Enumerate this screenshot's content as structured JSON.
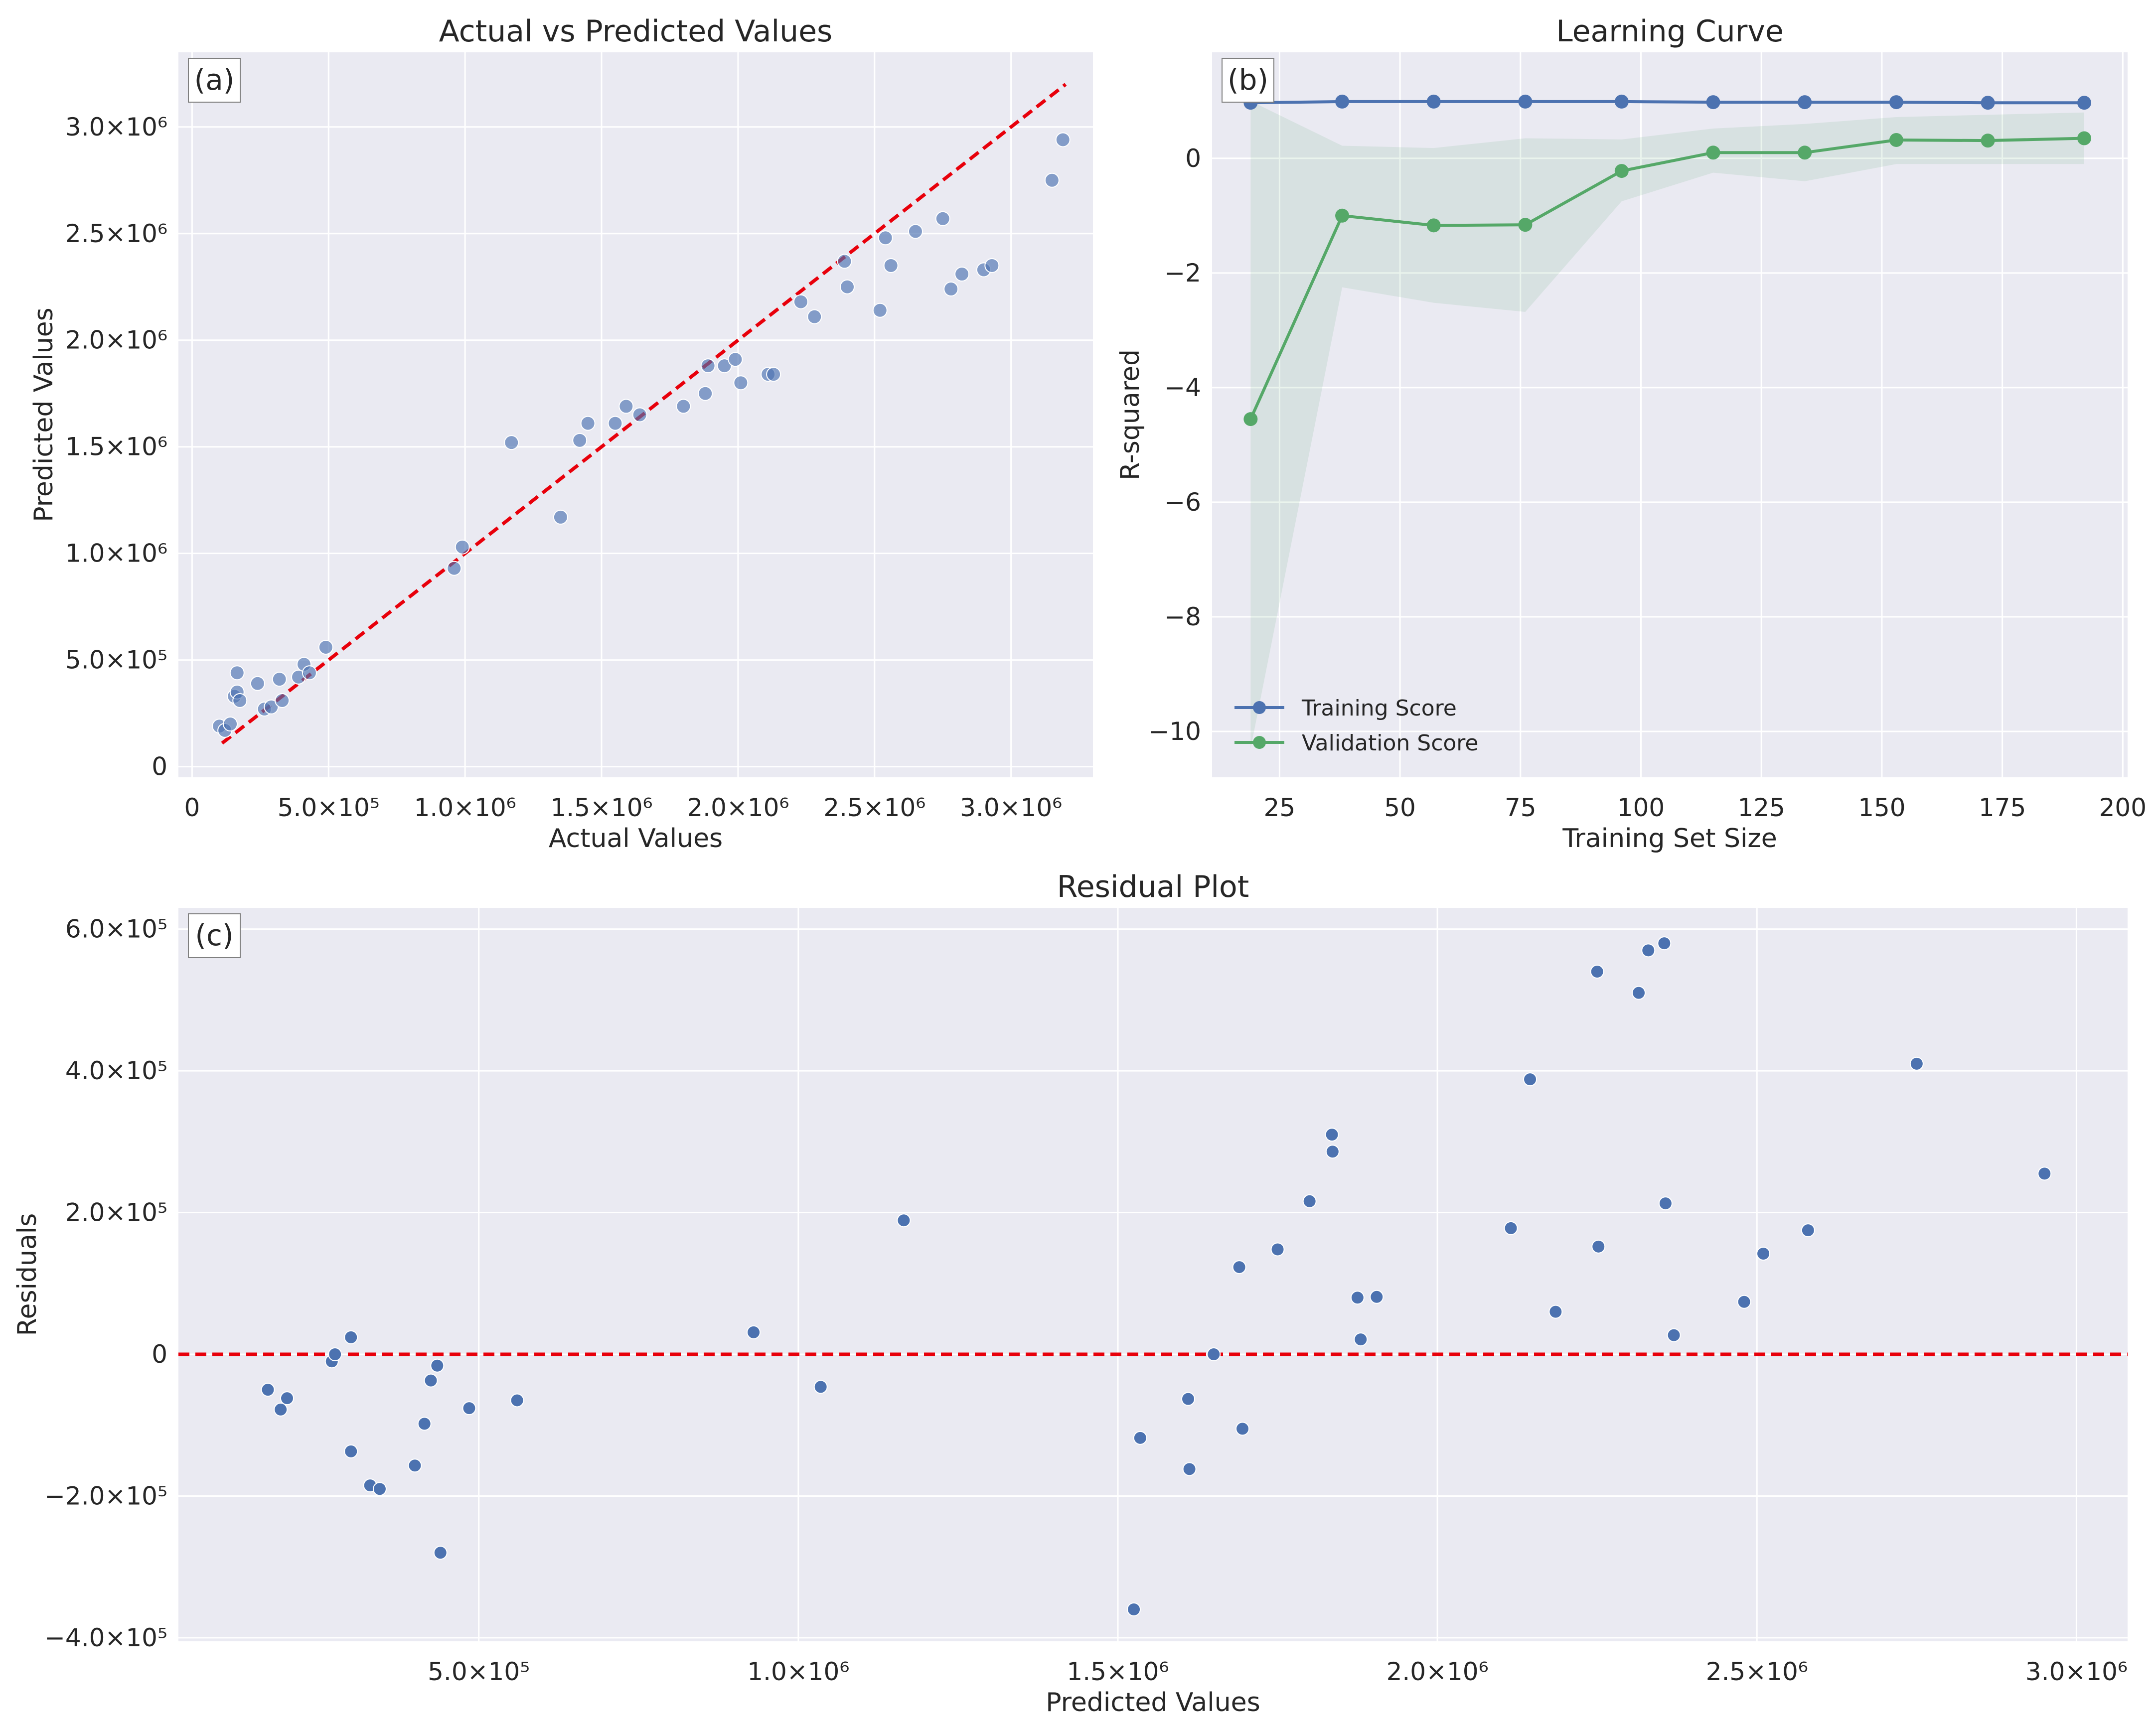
{
  "chart_data": [
    {
      "type": "scatter",
      "panel_label": "(a)",
      "title": "Actual vs Predicted Values",
      "xlabel": "Actual Values",
      "ylabel": "Predicted Values",
      "xlim": [
        -50000,
        3300000
      ],
      "ylim": [
        -50000,
        3350000
      ],
      "xticks": [
        0,
        500000,
        1000000,
        1500000,
        2000000,
        2500000,
        3000000
      ],
      "xtick_labels": [
        "0",
        "5.0×10⁵",
        "1.0×10⁶",
        "1.5×10⁶",
        "2.0×10⁶",
        "2.5×10⁶",
        "3.0×10⁶"
      ],
      "yticks": [
        0,
        500000,
        1000000,
        1500000,
        2000000,
        2500000,
        3000000
      ],
      "ytick_labels": [
        "0",
        "5.0×10⁵",
        "1.0×10⁶",
        "1.5×10⁶",
        "2.0×10⁶",
        "2.5×10⁶",
        "3.0×10⁶"
      ],
      "grid": true,
      "reference_line": {
        "x": [
          110000,
          3200000
        ],
        "y": [
          110000,
          3200000
        ],
        "color": "#e8000b",
        "style": "dashed"
      },
      "point_color": "#4c72b0",
      "points": [
        {
          "x": 100000,
          "y": 190000
        },
        {
          "x": 120000,
          "y": 170000
        },
        {
          "x": 140000,
          "y": 200000
        },
        {
          "x": 155000,
          "y": 330000
        },
        {
          "x": 165000,
          "y": 350000
        },
        {
          "x": 165000,
          "y": 440000
        },
        {
          "x": 175000,
          "y": 310000
        },
        {
          "x": 240000,
          "y": 390000
        },
        {
          "x": 265000,
          "y": 270000
        },
        {
          "x": 290000,
          "y": 280000
        },
        {
          "x": 320000,
          "y": 410000
        },
        {
          "x": 330000,
          "y": 310000
        },
        {
          "x": 390000,
          "y": 420000
        },
        {
          "x": 410000,
          "y": 480000
        },
        {
          "x": 430000,
          "y": 440000
        },
        {
          "x": 490000,
          "y": 560000
        },
        {
          "x": 960000,
          "y": 930000
        },
        {
          "x": 990000,
          "y": 1030000
        },
        {
          "x": 1170000,
          "y": 1520000
        },
        {
          "x": 1350000,
          "y": 1170000
        },
        {
          "x": 1420000,
          "y": 1530000
        },
        {
          "x": 1450000,
          "y": 1610000
        },
        {
          "x": 1550000,
          "y": 1610000
        },
        {
          "x": 1590000,
          "y": 1690000
        },
        {
          "x": 1640000,
          "y": 1650000
        },
        {
          "x": 1800000,
          "y": 1690000
        },
        {
          "x": 1880000,
          "y": 1750000
        },
        {
          "x": 1890000,
          "y": 1880000
        },
        {
          "x": 1950000,
          "y": 1880000
        },
        {
          "x": 1990000,
          "y": 1910000
        },
        {
          "x": 2010000,
          "y": 1800000
        },
        {
          "x": 2110000,
          "y": 1840000
        },
        {
          "x": 2130000,
          "y": 1840000
        },
        {
          "x": 2230000,
          "y": 2180000
        },
        {
          "x": 2280000,
          "y": 2110000
        },
        {
          "x": 2390000,
          "y": 2370000
        },
        {
          "x": 2400000,
          "y": 2250000
        },
        {
          "x": 2520000,
          "y": 2140000
        },
        {
          "x": 2540000,
          "y": 2480000
        },
        {
          "x": 2560000,
          "y": 2350000
        },
        {
          "x": 2650000,
          "y": 2510000
        },
        {
          "x": 2750000,
          "y": 2570000
        },
        {
          "x": 2780000,
          "y": 2240000
        },
        {
          "x": 2820000,
          "y": 2310000
        },
        {
          "x": 2900000,
          "y": 2330000
        },
        {
          "x": 2930000,
          "y": 2350000
        },
        {
          "x": 3150000,
          "y": 2750000
        },
        {
          "x": 3190000,
          "y": 2940000
        }
      ]
    },
    {
      "type": "line",
      "panel_label": "(b)",
      "title": "Learning Curve",
      "xlabel": "Training Set Size",
      "ylabel": "R-squared",
      "xlim": [
        11,
        201
      ],
      "ylim": [
        -10.8,
        1.85
      ],
      "xticks": [
        25,
        50,
        75,
        100,
        125,
        150,
        175,
        200
      ],
      "xtick_labels": [
        "25",
        "50",
        "75",
        "100",
        "125",
        "150",
        "175",
        "200"
      ],
      "yticks": [
        0,
        -2,
        -4,
        -6,
        -8,
        -10
      ],
      "ytick_labels": [
        "0",
        "−2",
        "−4",
        "−6",
        "−8",
        "−10"
      ],
      "grid": true,
      "x": [
        19,
        38,
        57,
        76,
        96,
        115,
        134,
        153,
        172,
        192
      ],
      "series": [
        {
          "name": "Training Score",
          "color": "#4c72b0",
          "values": [
            0.97,
            0.99,
            0.99,
            0.99,
            0.99,
            0.98,
            0.98,
            0.98,
            0.97,
            0.97
          ],
          "band_low": [
            0.95,
            0.97,
            0.97,
            0.97,
            0.97,
            0.96,
            0.96,
            0.96,
            0.95,
            0.95
          ],
          "band_high": [
            0.99,
            1.01,
            1.01,
            1.01,
            1.01,
            1.0,
            1.0,
            1.0,
            0.99,
            0.99
          ]
        },
        {
          "name": "Validation Score",
          "color": "#55a868",
          "values": [
            -4.55,
            -1.0,
            -1.17,
            -1.16,
            -0.22,
            0.1,
            0.1,
            0.32,
            0.31,
            0.35
          ],
          "band_low": [
            -10.3,
            -2.25,
            -2.52,
            -2.68,
            -0.75,
            -0.25,
            -0.4,
            -0.1,
            -0.1,
            -0.1
          ],
          "band_high": [
            1.0,
            0.22,
            0.18,
            0.35,
            0.33,
            0.52,
            0.6,
            0.72,
            0.76,
            0.8
          ]
        }
      ],
      "legend": "lower-left"
    },
    {
      "type": "scatter",
      "panel_label": "(c)",
      "title": "Residual Plot",
      "xlabel": "Predicted Values",
      "ylabel": "Residuals",
      "xlim": [
        30000,
        3080000
      ],
      "ylim": [
        -405000,
        630000
      ],
      "xticks": [
        500000,
        1000000,
        1500000,
        2000000,
        2500000,
        3000000
      ],
      "xtick_labels": [
        "5.0×10⁵",
        "1.0×10⁶",
        "1.5×10⁶",
        "2.0×10⁶",
        "2.5×10⁶",
        "3.0×10⁶"
      ],
      "yticks": [
        600000,
        400000,
        200000,
        0,
        -200000,
        -400000
      ],
      "ytick_labels": [
        "6.0×10⁵",
        "4.0×10⁵",
        "2.0×10⁵",
        "0",
        "−2.0×10⁵",
        "−4.0×10⁵"
      ],
      "grid": true,
      "reference_line": {
        "y": 0,
        "color": "#e8000b",
        "style": "dashed"
      },
      "point_color": "#4c72b0",
      "points": [
        {
          "x": 170000,
          "y": -50000
        },
        {
          "x": 190000,
          "y": -78000
        },
        {
          "x": 200000,
          "y": -62000
        },
        {
          "x": 270000,
          "y": -10000
        },
        {
          "x": 275000,
          "y": 0
        },
        {
          "x": 300000,
          "y": 24000
        },
        {
          "x": 300000,
          "y": -137000
        },
        {
          "x": 330000,
          "y": -185000
        },
        {
          "x": 345000,
          "y": -190000
        },
        {
          "x": 400000,
          "y": -157000
        },
        {
          "x": 415000,
          "y": -98000
        },
        {
          "x": 425000,
          "y": -37000
        },
        {
          "x": 435000,
          "y": -16000
        },
        {
          "x": 440000,
          "y": -280000
        },
        {
          "x": 485000,
          "y": -76000
        },
        {
          "x": 560000,
          "y": -65000
        },
        {
          "x": 930000,
          "y": 31000
        },
        {
          "x": 1035000,
          "y": -46000
        },
        {
          "x": 1165000,
          "y": 189000
        },
        {
          "x": 1525000,
          "y": -360000
        },
        {
          "x": 1535000,
          "y": -118000
        },
        {
          "x": 1610000,
          "y": -63000
        },
        {
          "x": 1612000,
          "y": -162000
        },
        {
          "x": 1650000,
          "y": 0
        },
        {
          "x": 1690000,
          "y": 123000
        },
        {
          "x": 1695000,
          "y": -105000
        },
        {
          "x": 1750000,
          "y": 148000
        },
        {
          "x": 1800000,
          "y": 216000
        },
        {
          "x": 1835000,
          "y": 310000
        },
        {
          "x": 1836000,
          "y": 286000
        },
        {
          "x": 1875000,
          "y": 80000
        },
        {
          "x": 1880000,
          "y": 21000
        },
        {
          "x": 1905000,
          "y": 81000
        },
        {
          "x": 2115000,
          "y": 178000
        },
        {
          "x": 2145000,
          "y": 388000
        },
        {
          "x": 2185000,
          "y": 60000
        },
        {
          "x": 2250000,
          "y": 540000
        },
        {
          "x": 2252000,
          "y": 152000
        },
        {
          "x": 2315000,
          "y": 510000
        },
        {
          "x": 2330000,
          "y": 570000
        },
        {
          "x": 2355000,
          "y": 580000
        },
        {
          "x": 2357000,
          "y": 213000
        },
        {
          "x": 2370000,
          "y": 27000
        },
        {
          "x": 2480000,
          "y": 74000
        },
        {
          "x": 2510000,
          "y": 142000
        },
        {
          "x": 2580000,
          "y": 175000
        },
        {
          "x": 2750000,
          "y": 410000
        },
        {
          "x": 2950000,
          "y": 255000
        }
      ]
    }
  ]
}
